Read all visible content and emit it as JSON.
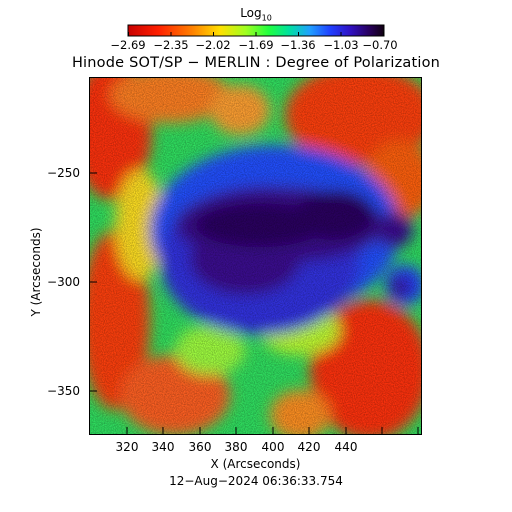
{
  "header": {
    "colorbar_label": "Log",
    "colorbar_label_sub": "10",
    "colorbar_ticks": [
      "−2.69",
      "−2.35",
      "−2.02",
      "−1.69",
      "−1.36",
      "−1.03",
      "−0.70"
    ],
    "title": "Hinode SOT/SP − MERLIN : Degree of Polarization"
  },
  "axes": {
    "x_label": "X (Arcseconds)",
    "y_label": "Y (Arcseconds)",
    "x_ticks": [
      "320",
      "340",
      "360",
      "380",
      "400",
      "420",
      "440"
    ],
    "y_ticks": [
      "−250",
      "−300",
      "−350"
    ]
  },
  "footer": {
    "timestamp": "12−Aug−2024 06:36:33.754"
  },
  "colors": {
    "colormap": [
      "#c80000",
      "#ff2000",
      "#ff8000",
      "#ffe000",
      "#a0ff20",
      "#20ff40",
      "#00e0a0",
      "#20a0ff",
      "#2040ff",
      "#3010c0",
      "#280060",
      "#100010"
    ]
  }
}
